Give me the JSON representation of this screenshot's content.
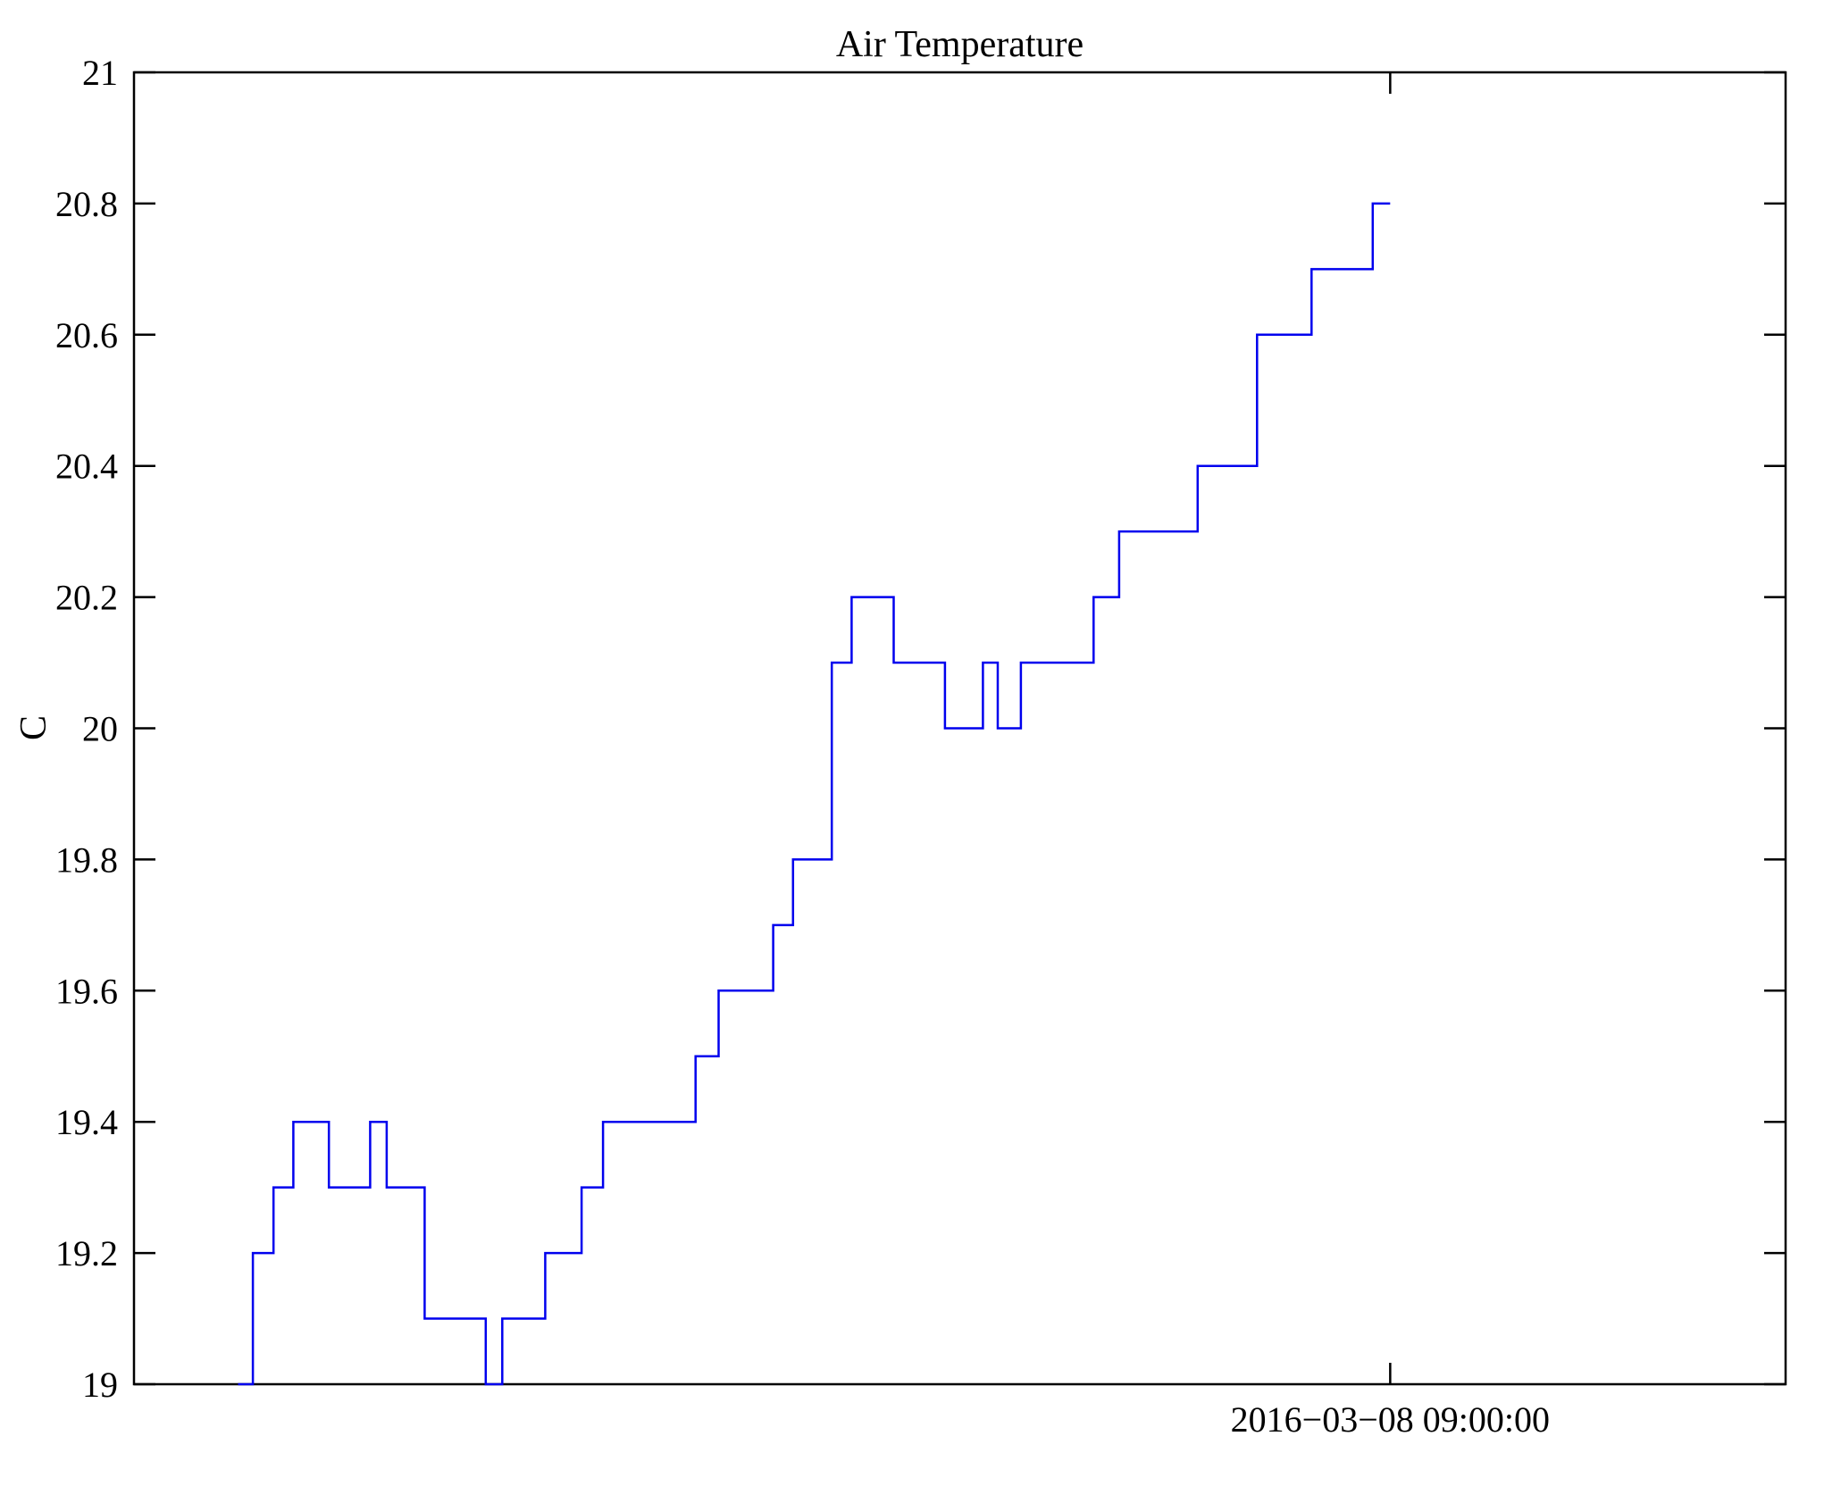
{
  "chart_data": {
    "type": "line",
    "subtype": "step-post",
    "title": "Air Temperature",
    "xlabel": "",
    "ylabel": "C",
    "ylim": [
      19,
      21
    ],
    "yticks": [
      19,
      19.2,
      19.4,
      19.6,
      19.8,
      20,
      20.2,
      20.4,
      20.6,
      20.8,
      21
    ],
    "ytick_labels": [
      "19",
      "19.2",
      "19.4",
      "19.6",
      "19.8",
      "20",
      "20.2",
      "20.4",
      "20.6",
      "20.8",
      "21"
    ],
    "x_axis": {
      "tick_fraction": 0.7606,
      "tick_label": "2016−03−08 09:00:00"
    },
    "grid": false,
    "legend_position": "none",
    "line_color": "#0000ee",
    "axis_color": "#000000",
    "series": [
      {
        "name": "Air Temperature",
        "x_unit": "fraction-of-x-axis",
        "y_unit": "C",
        "points": [
          [
            0.063,
            19.0
          ],
          [
            0.072,
            19.2
          ],
          [
            0.0845,
            19.3
          ],
          [
            0.0965,
            19.4
          ],
          [
            0.118,
            19.3
          ],
          [
            0.143,
            19.4
          ],
          [
            0.153,
            19.3
          ],
          [
            0.176,
            19.1
          ],
          [
            0.213,
            19.0
          ],
          [
            0.223,
            19.1
          ],
          [
            0.249,
            19.2
          ],
          [
            0.271,
            19.3
          ],
          [
            0.284,
            19.4
          ],
          [
            0.34,
            19.5
          ],
          [
            0.354,
            19.6
          ],
          [
            0.387,
            19.7
          ],
          [
            0.399,
            19.8
          ],
          [
            0.4225,
            20.1
          ],
          [
            0.4345,
            20.2
          ],
          [
            0.46,
            20.1
          ],
          [
            0.491,
            20.0
          ],
          [
            0.514,
            20.1
          ],
          [
            0.523,
            20.0
          ],
          [
            0.537,
            20.1
          ],
          [
            0.581,
            20.2
          ],
          [
            0.5965,
            20.3
          ],
          [
            0.644,
            20.4
          ],
          [
            0.68,
            20.6
          ],
          [
            0.713,
            20.7
          ],
          [
            0.75,
            20.8
          ]
        ],
        "x_end": 0.7606
      }
    ]
  }
}
